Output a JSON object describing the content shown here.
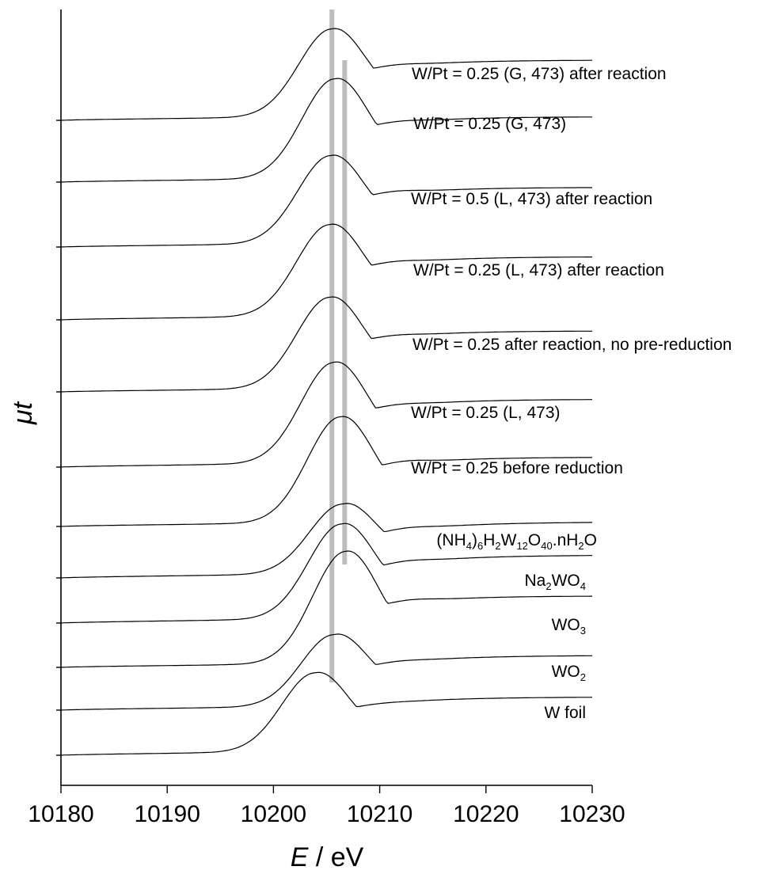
{
  "chart_data": {
    "type": "line",
    "title": "",
    "xlabel": {
      "symbol": "E",
      "unit": "eV"
    },
    "ylabel": "μt",
    "xlim": [
      10180,
      10230
    ],
    "xticks": [
      10180,
      10190,
      10200,
      10210,
      10220,
      10230
    ],
    "y_tick_labels": false,
    "legend": "labels beside curves",
    "reference_lines": [
      {
        "x": 10205.5,
        "color": "#bdbdbd"
      },
      {
        "x": 10206.7,
        "color": "#bdbdbd"
      }
    ],
    "series": [
      {
        "name": "W/Pt = 0.25 (G, 473) after reaction",
        "peak_x": 10205.5,
        "shoulder": 0.25
      },
      {
        "name": "W/Pt = 0.25 (G, 473)",
        "peak_x": 10205.8,
        "shoulder": 0.25
      },
      {
        "name": "W/Pt = 0.5 (L, 473) after reaction",
        "peak_x": 10205.4,
        "shoulder": 0.35
      },
      {
        "name": "W/Pt = 0.25 (L, 473) after reaction",
        "peak_x": 10205.3,
        "shoulder": 0.3
      },
      {
        "name": "W/Pt = 0.25 after reaction, no pre-reduction",
        "peak_x": 10205.3,
        "shoulder": 0.25
      },
      {
        "name": "W/Pt = 0.25 (L, 473)",
        "peak_x": 10205.7,
        "shoulder": 0.25
      },
      {
        "name": "W/Pt = 0.25 before reduction",
        "peak_x": 10206.3,
        "shoulder": 0.4
      },
      {
        "name": "(NH4)6H2W12O40.nH2O",
        "peak_x": 10206.5,
        "shoulder": 0.3
      },
      {
        "name": "Na2WO4",
        "peak_x": 10206.4,
        "shoulder": 0.3
      },
      {
        "name": "WO3",
        "peak_x": 10206.8,
        "shoulder": 0.35
      },
      {
        "name": "WO2",
        "peak_x": 10205.7,
        "shoulder": 0.2
      },
      {
        "name": "W foil",
        "peak_x": 10203.9,
        "shoulder": 0.1
      }
    ]
  }
}
